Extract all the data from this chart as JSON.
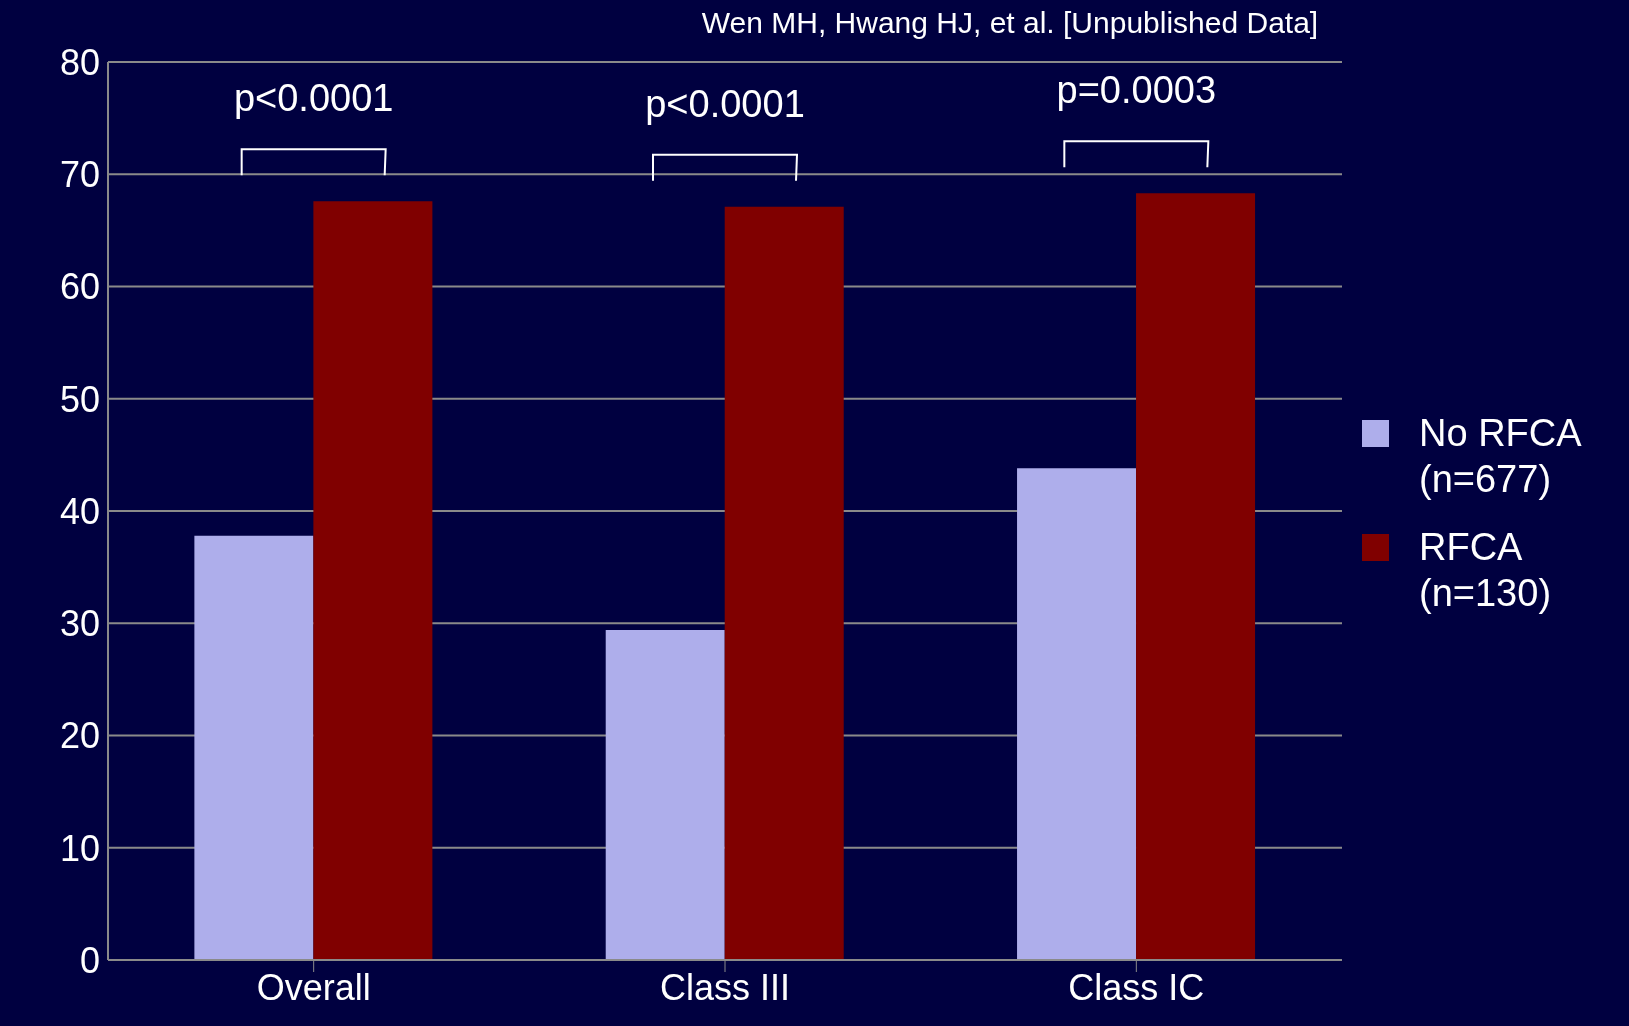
{
  "chart_data": {
    "type": "bar",
    "categories": [
      "Overall",
      "Class III",
      "Class IC"
    ],
    "series": [
      {
        "name": "No RFCA (n=677)",
        "color": "#aeaeeb",
        "values": [
          37.8,
          29.4,
          43.8
        ]
      },
      {
        "name": "RFCA (n=130)",
        "color": "#800000",
        "values": [
          67.6,
          67.1,
          68.3
        ]
      }
    ],
    "ylim": [
      0,
      80
    ],
    "yticks": [
      0,
      10,
      20,
      30,
      40,
      50,
      60,
      70,
      80
    ],
    "grid": "y",
    "legend": "right",
    "annotations": [
      "Wen MH, Hwang HJ, et al. [Unpublished Data]",
      "p<0.0001",
      "p<0.0001",
      "p=0.0003"
    ]
  }
}
